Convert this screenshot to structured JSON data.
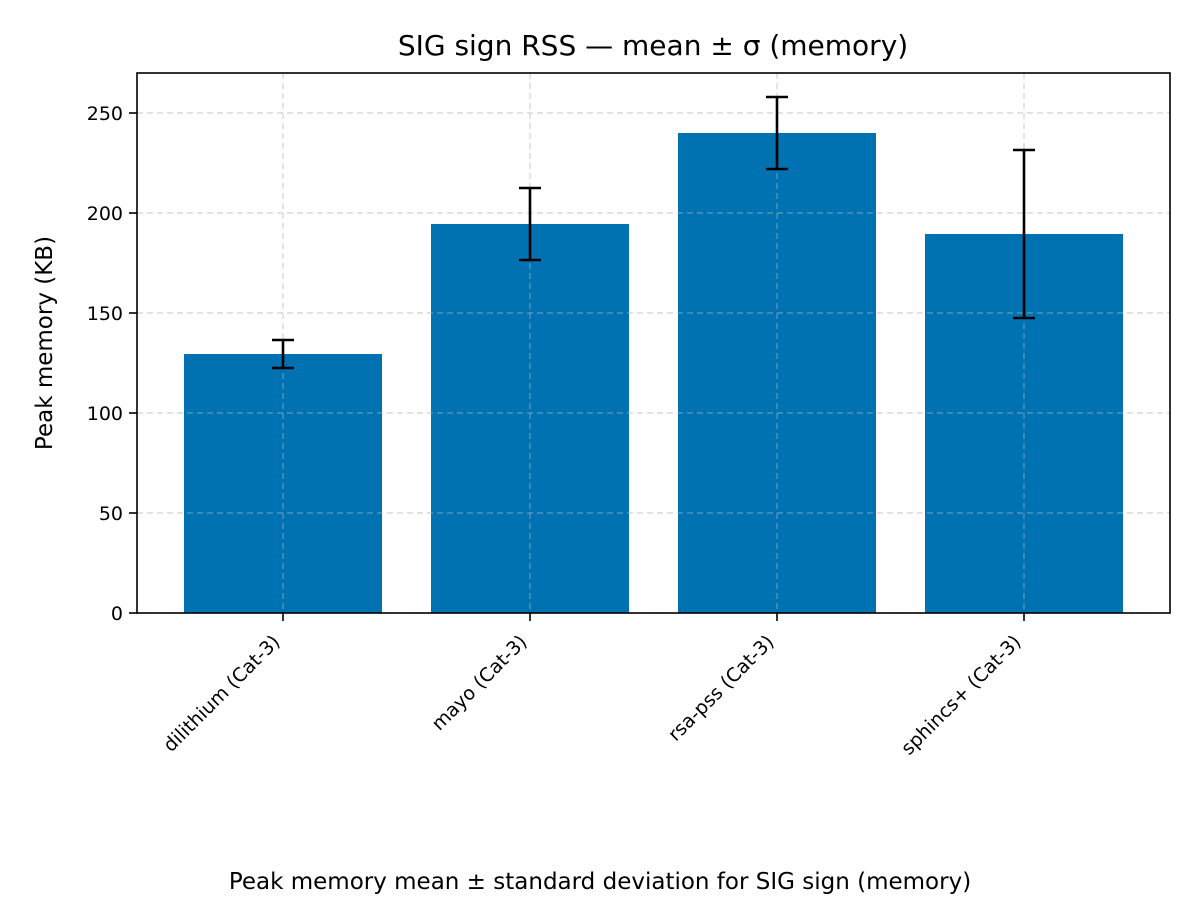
{
  "chart_data": {
    "type": "bar",
    "title": "SIG sign RSS — mean ± σ (memory)",
    "ylabel": "Peak memory (KB)",
    "xlabel": "",
    "caption": "Peak memory mean ± standard deviation for SIG sign (memory)",
    "categories": [
      "dilithium (Cat-3)",
      "mayo (Cat-3)",
      "rsa-pss (Cat-3)",
      "sphincs+ (Cat-3)"
    ],
    "values": [
      129.5,
      194.5,
      240,
      189.5
    ],
    "errors": [
      7,
      18,
      18,
      42
    ],
    "ylim": [
      0,
      270
    ],
    "yticks": [
      0,
      50,
      100,
      150,
      200,
      250
    ],
    "grid": true,
    "bar_color": "#0072b2",
    "error_color": "#000000"
  }
}
